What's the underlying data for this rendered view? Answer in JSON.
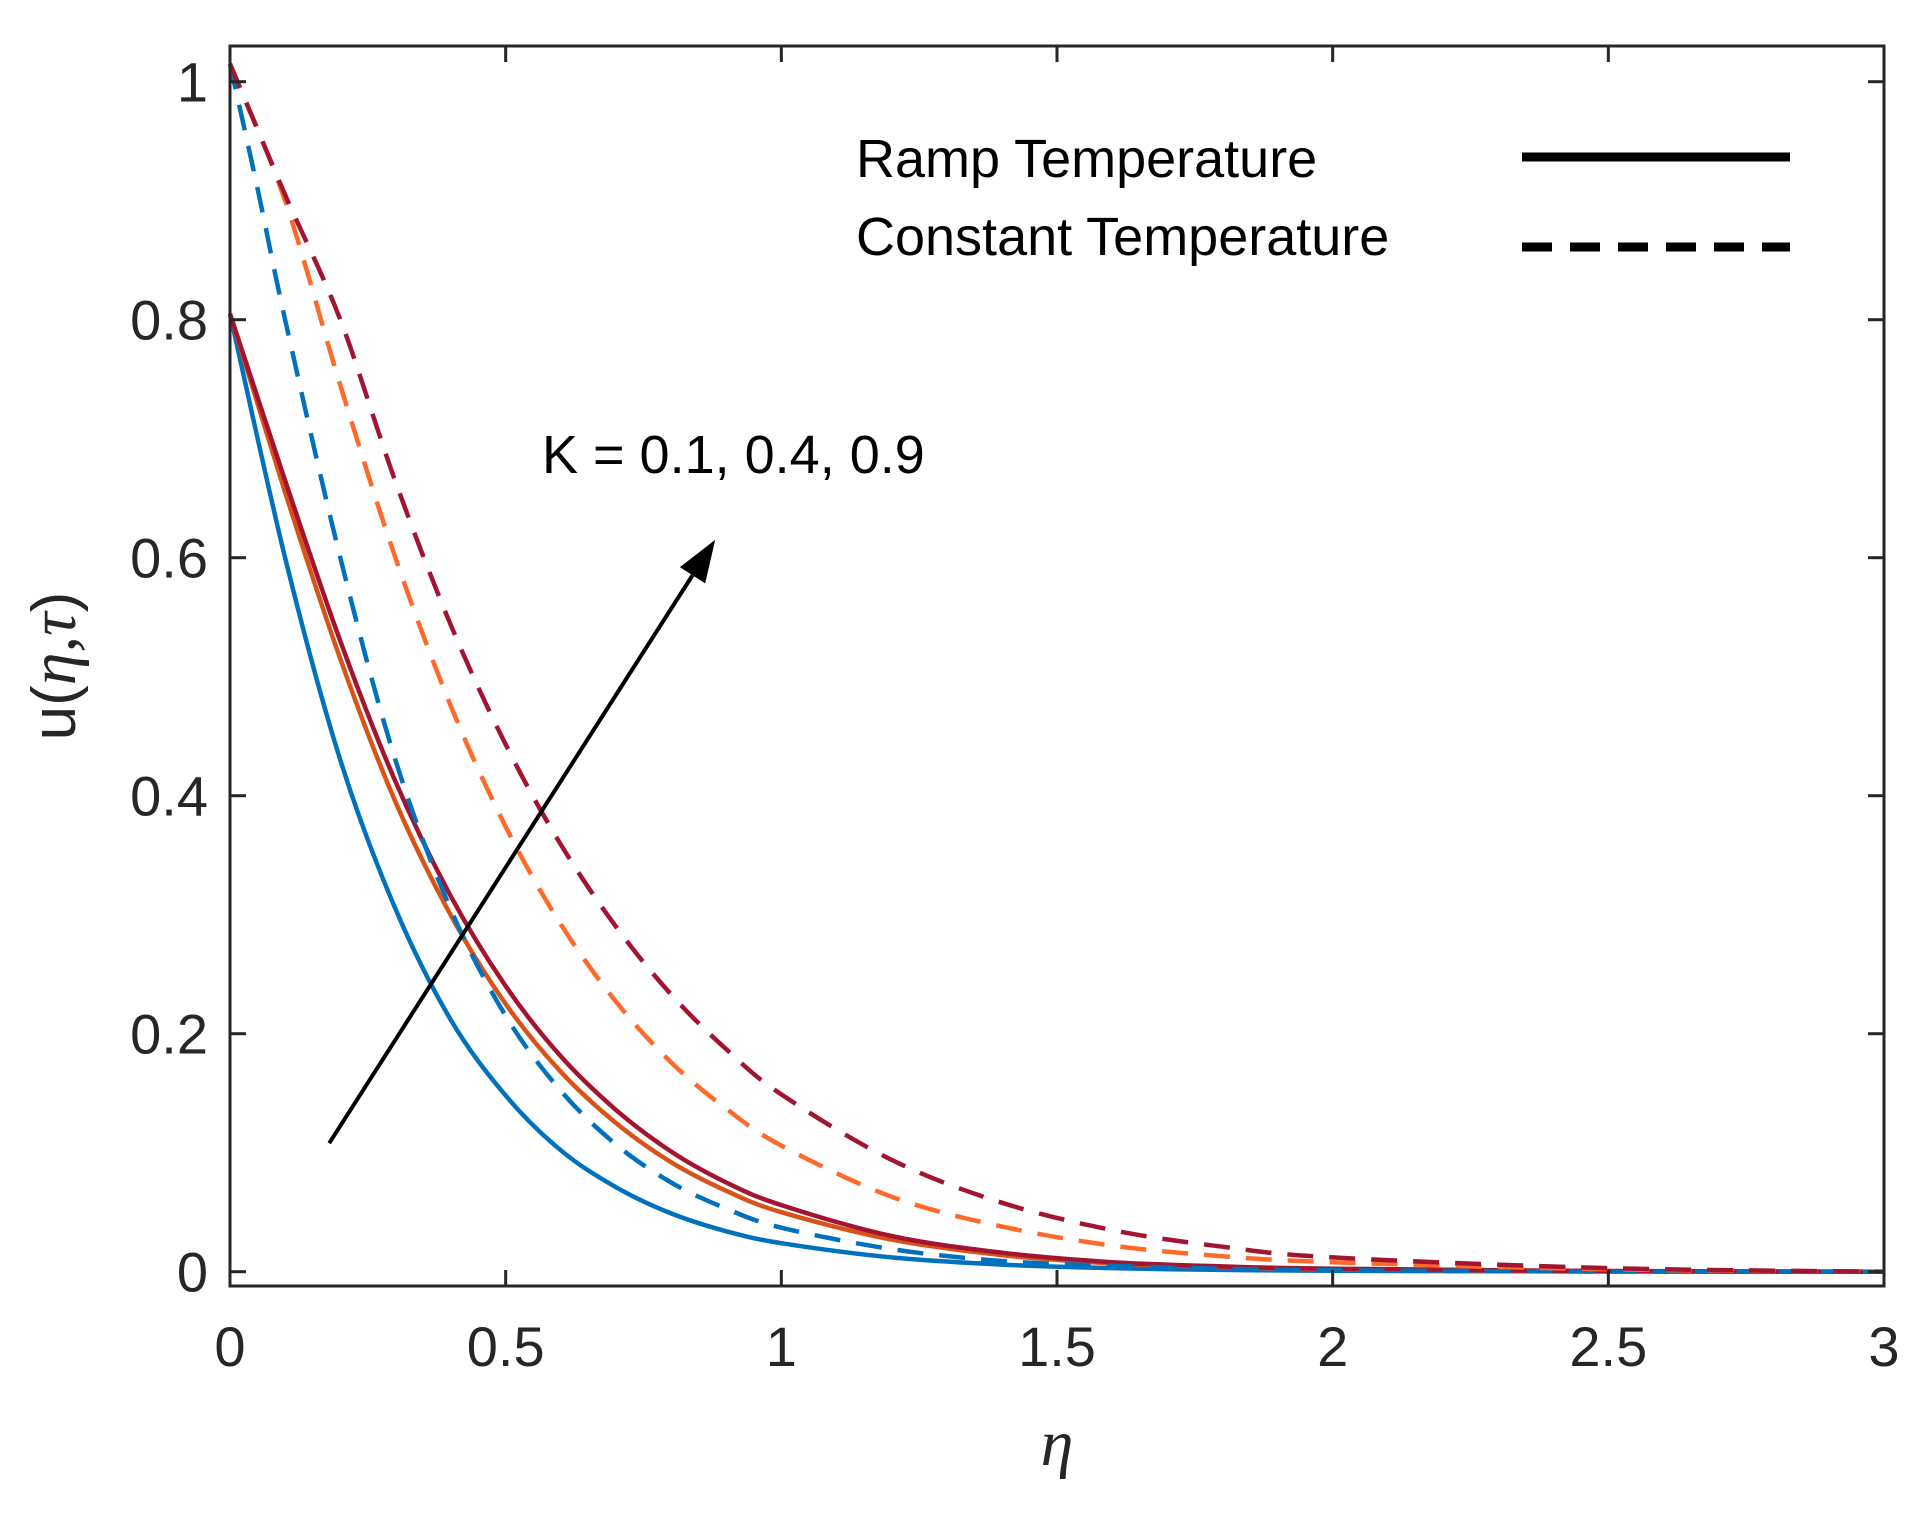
{
  "chart_data": {
    "type": "line",
    "title": "",
    "xlabel": "η",
    "ylabel_prefix": "u(",
    "ylabel_vars": "η,τ",
    "ylabel_suffix": ")",
    "xlim": [
      0,
      3
    ],
    "ylim": [
      -0.012,
      1.03
    ],
    "xticks": [
      0,
      0.5,
      1,
      1.5,
      2,
      2.5,
      3
    ],
    "xtick_labels": [
      "0",
      "0.5",
      "1",
      "1.5",
      "2",
      "2.5",
      "3"
    ],
    "yticks": [
      0,
      0.2,
      0.4,
      0.6,
      0.8,
      1
    ],
    "ytick_labels": [
      "0",
      "0.2",
      "0.4",
      "0.6",
      "0.8",
      "1"
    ],
    "grid": false,
    "legend": {
      "placement": "top-right",
      "entries": [
        {
          "label": "Ramp Temperature",
          "style": "solid"
        },
        {
          "label": "Constant Temperature",
          "style": "dashed"
        }
      ]
    },
    "annotation": {
      "text": "K = 0.1, 0.4, 0.9",
      "arrow_from": [
        0.18,
        0.108
      ],
      "arrow_to": [
        0.88,
        0.615
      ]
    },
    "series": [
      {
        "name": "Ramp, K = 0.1",
        "style": "solid",
        "color": "#0072BD",
        "x": [
          0,
          0.1,
          0.2,
          0.3,
          0.4,
          0.5,
          0.6,
          0.7,
          0.8,
          0.9,
          1.0,
          1.2,
          1.4,
          1.6,
          1.8,
          2.0,
          2.5,
          3.0
        ],
        "y": [
          0.805,
          0.6,
          0.43,
          0.305,
          0.212,
          0.148,
          0.102,
          0.071,
          0.049,
          0.034,
          0.024,
          0.012,
          0.006,
          0.003,
          0.0015,
          0.0008,
          0.0002,
          0.0
        ]
      },
      {
        "name": "Ramp, K = 0.4",
        "style": "solid",
        "color": "#D95319",
        "x": [
          0,
          0.1,
          0.2,
          0.3,
          0.4,
          0.5,
          0.6,
          0.7,
          0.8,
          0.9,
          1.0,
          1.2,
          1.4,
          1.6,
          1.8,
          2.0,
          2.5,
          3.0
        ],
        "y": [
          0.805,
          0.655,
          0.515,
          0.395,
          0.3,
          0.225,
          0.168,
          0.125,
          0.092,
          0.068,
          0.05,
          0.027,
          0.014,
          0.007,
          0.004,
          0.002,
          0.0005,
          0.0
        ]
      },
      {
        "name": "Ramp, K = 0.9",
        "style": "solid",
        "color": "#A2142F",
        "x": [
          0,
          0.1,
          0.2,
          0.3,
          0.4,
          0.5,
          0.6,
          0.7,
          0.8,
          0.9,
          1.0,
          1.2,
          1.4,
          1.6,
          1.8,
          2.0,
          2.5,
          3.0
        ],
        "y": [
          0.805,
          0.665,
          0.53,
          0.412,
          0.316,
          0.24,
          0.181,
          0.136,
          0.101,
          0.075,
          0.056,
          0.03,
          0.016,
          0.008,
          0.0045,
          0.0025,
          0.0006,
          0.0
        ]
      },
      {
        "name": "Constant, K = 0.1",
        "style": "dashed",
        "color": "#0072BD",
        "x": [
          0,
          0.05,
          0.1,
          0.2,
          0.3,
          0.4,
          0.5,
          0.6,
          0.7,
          0.8,
          0.9,
          1.0,
          1.2,
          1.4,
          1.6,
          1.8,
          2.0,
          2.5,
          3.0
        ],
        "y": [
          1.015,
          0.91,
          0.8,
          0.6,
          0.43,
          0.305,
          0.215,
          0.152,
          0.107,
          0.075,
          0.053,
          0.037,
          0.019,
          0.009,
          0.005,
          0.0025,
          0.0012,
          0.0002,
          0.0
        ]
      },
      {
        "name": "Constant, K = 0.4",
        "style": "dashed",
        "color": "#FF6929",
        "x": [
          0,
          0.1,
          0.2,
          0.3,
          0.4,
          0.5,
          0.6,
          0.7,
          0.8,
          0.9,
          1.0,
          1.2,
          1.4,
          1.6,
          1.8,
          2.0,
          2.5,
          3.0
        ],
        "y": [
          1.015,
          0.9,
          0.745,
          0.6,
          0.476,
          0.374,
          0.292,
          0.227,
          0.176,
          0.137,
          0.106,
          0.063,
          0.038,
          0.022,
          0.013,
          0.008,
          0.002,
          0.0
        ]
      },
      {
        "name": "Constant, K = 0.9",
        "style": "dashed",
        "color": "#A2142F",
        "x": [
          0,
          0.1,
          0.2,
          0.3,
          0.4,
          0.5,
          0.6,
          0.7,
          0.8,
          0.9,
          1.0,
          1.2,
          1.4,
          1.6,
          1.8,
          2.0,
          2.5,
          3.0
        ],
        "y": [
          1.015,
          0.905,
          0.8,
          0.664,
          0.544,
          0.443,
          0.359,
          0.29,
          0.233,
          0.187,
          0.149,
          0.094,
          0.058,
          0.035,
          0.021,
          0.012,
          0.003,
          0.0
        ]
      }
    ]
  }
}
